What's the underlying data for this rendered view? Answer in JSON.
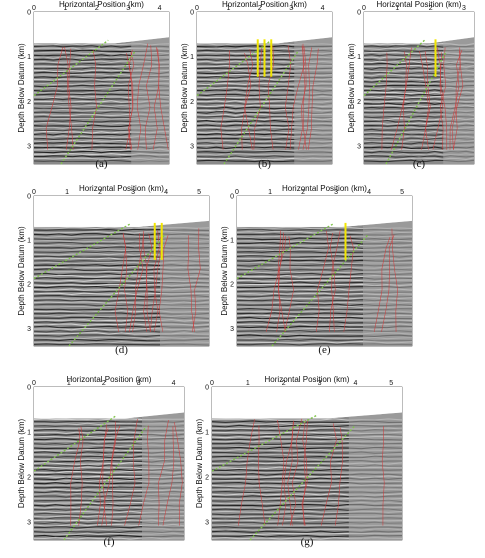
{
  "figure": {
    "x_axis_label": "Horizontal Position (km)",
    "y_axis_label": "Depth Below Datum (km)",
    "panels": [
      {
        "caption": "(a)",
        "x_ticks": [
          "0",
          "1",
          "2",
          "3",
          "4"
        ],
        "y_ticks": [
          "0",
          "1",
          "2",
          "3"
        ],
        "marker_count": 0
      },
      {
        "caption": "(b)",
        "x_ticks": [
          "0",
          "1",
          "2",
          "3",
          "4"
        ],
        "y_ticks": [
          "0",
          "1",
          "2",
          "3"
        ],
        "marker_count": 3
      },
      {
        "caption": "(c)",
        "x_ticks": [
          "0",
          "1",
          "2",
          "3"
        ],
        "y_ticks": [
          "0",
          "1",
          "2",
          "3"
        ],
        "marker_count": 1
      },
      {
        "caption": "(d)",
        "x_ticks": [
          "0",
          "1",
          "2",
          "3",
          "4",
          "5"
        ],
        "y_ticks": [
          "0",
          "1",
          "2",
          "3"
        ],
        "marker_count": 2
      },
      {
        "caption": "(e)",
        "x_ticks": [
          "0",
          "1",
          "2",
          "3",
          "4",
          "5"
        ],
        "y_ticks": [
          "0",
          "1",
          "2",
          "3"
        ],
        "marker_count": 1
      },
      {
        "caption": "(f)",
        "x_ticks": [
          "0",
          "1",
          "2",
          "3",
          "4"
        ],
        "y_ticks": [
          "0",
          "1",
          "2",
          "3"
        ],
        "marker_count": 0
      },
      {
        "caption": "(g)",
        "x_ticks": [
          "0",
          "1",
          "2",
          "3",
          "4",
          "5"
        ],
        "y_ticks": [
          "0",
          "1",
          "2",
          "3"
        ],
        "marker_count": 0
      }
    ]
  },
  "colors": {
    "seismic_dark": "#1a1a1a",
    "seismic_light": "#d8d8d8",
    "fault_red": "#d23a3a",
    "horizon_green": "#7fc34a",
    "marker_yellow": "#f2e600"
  }
}
